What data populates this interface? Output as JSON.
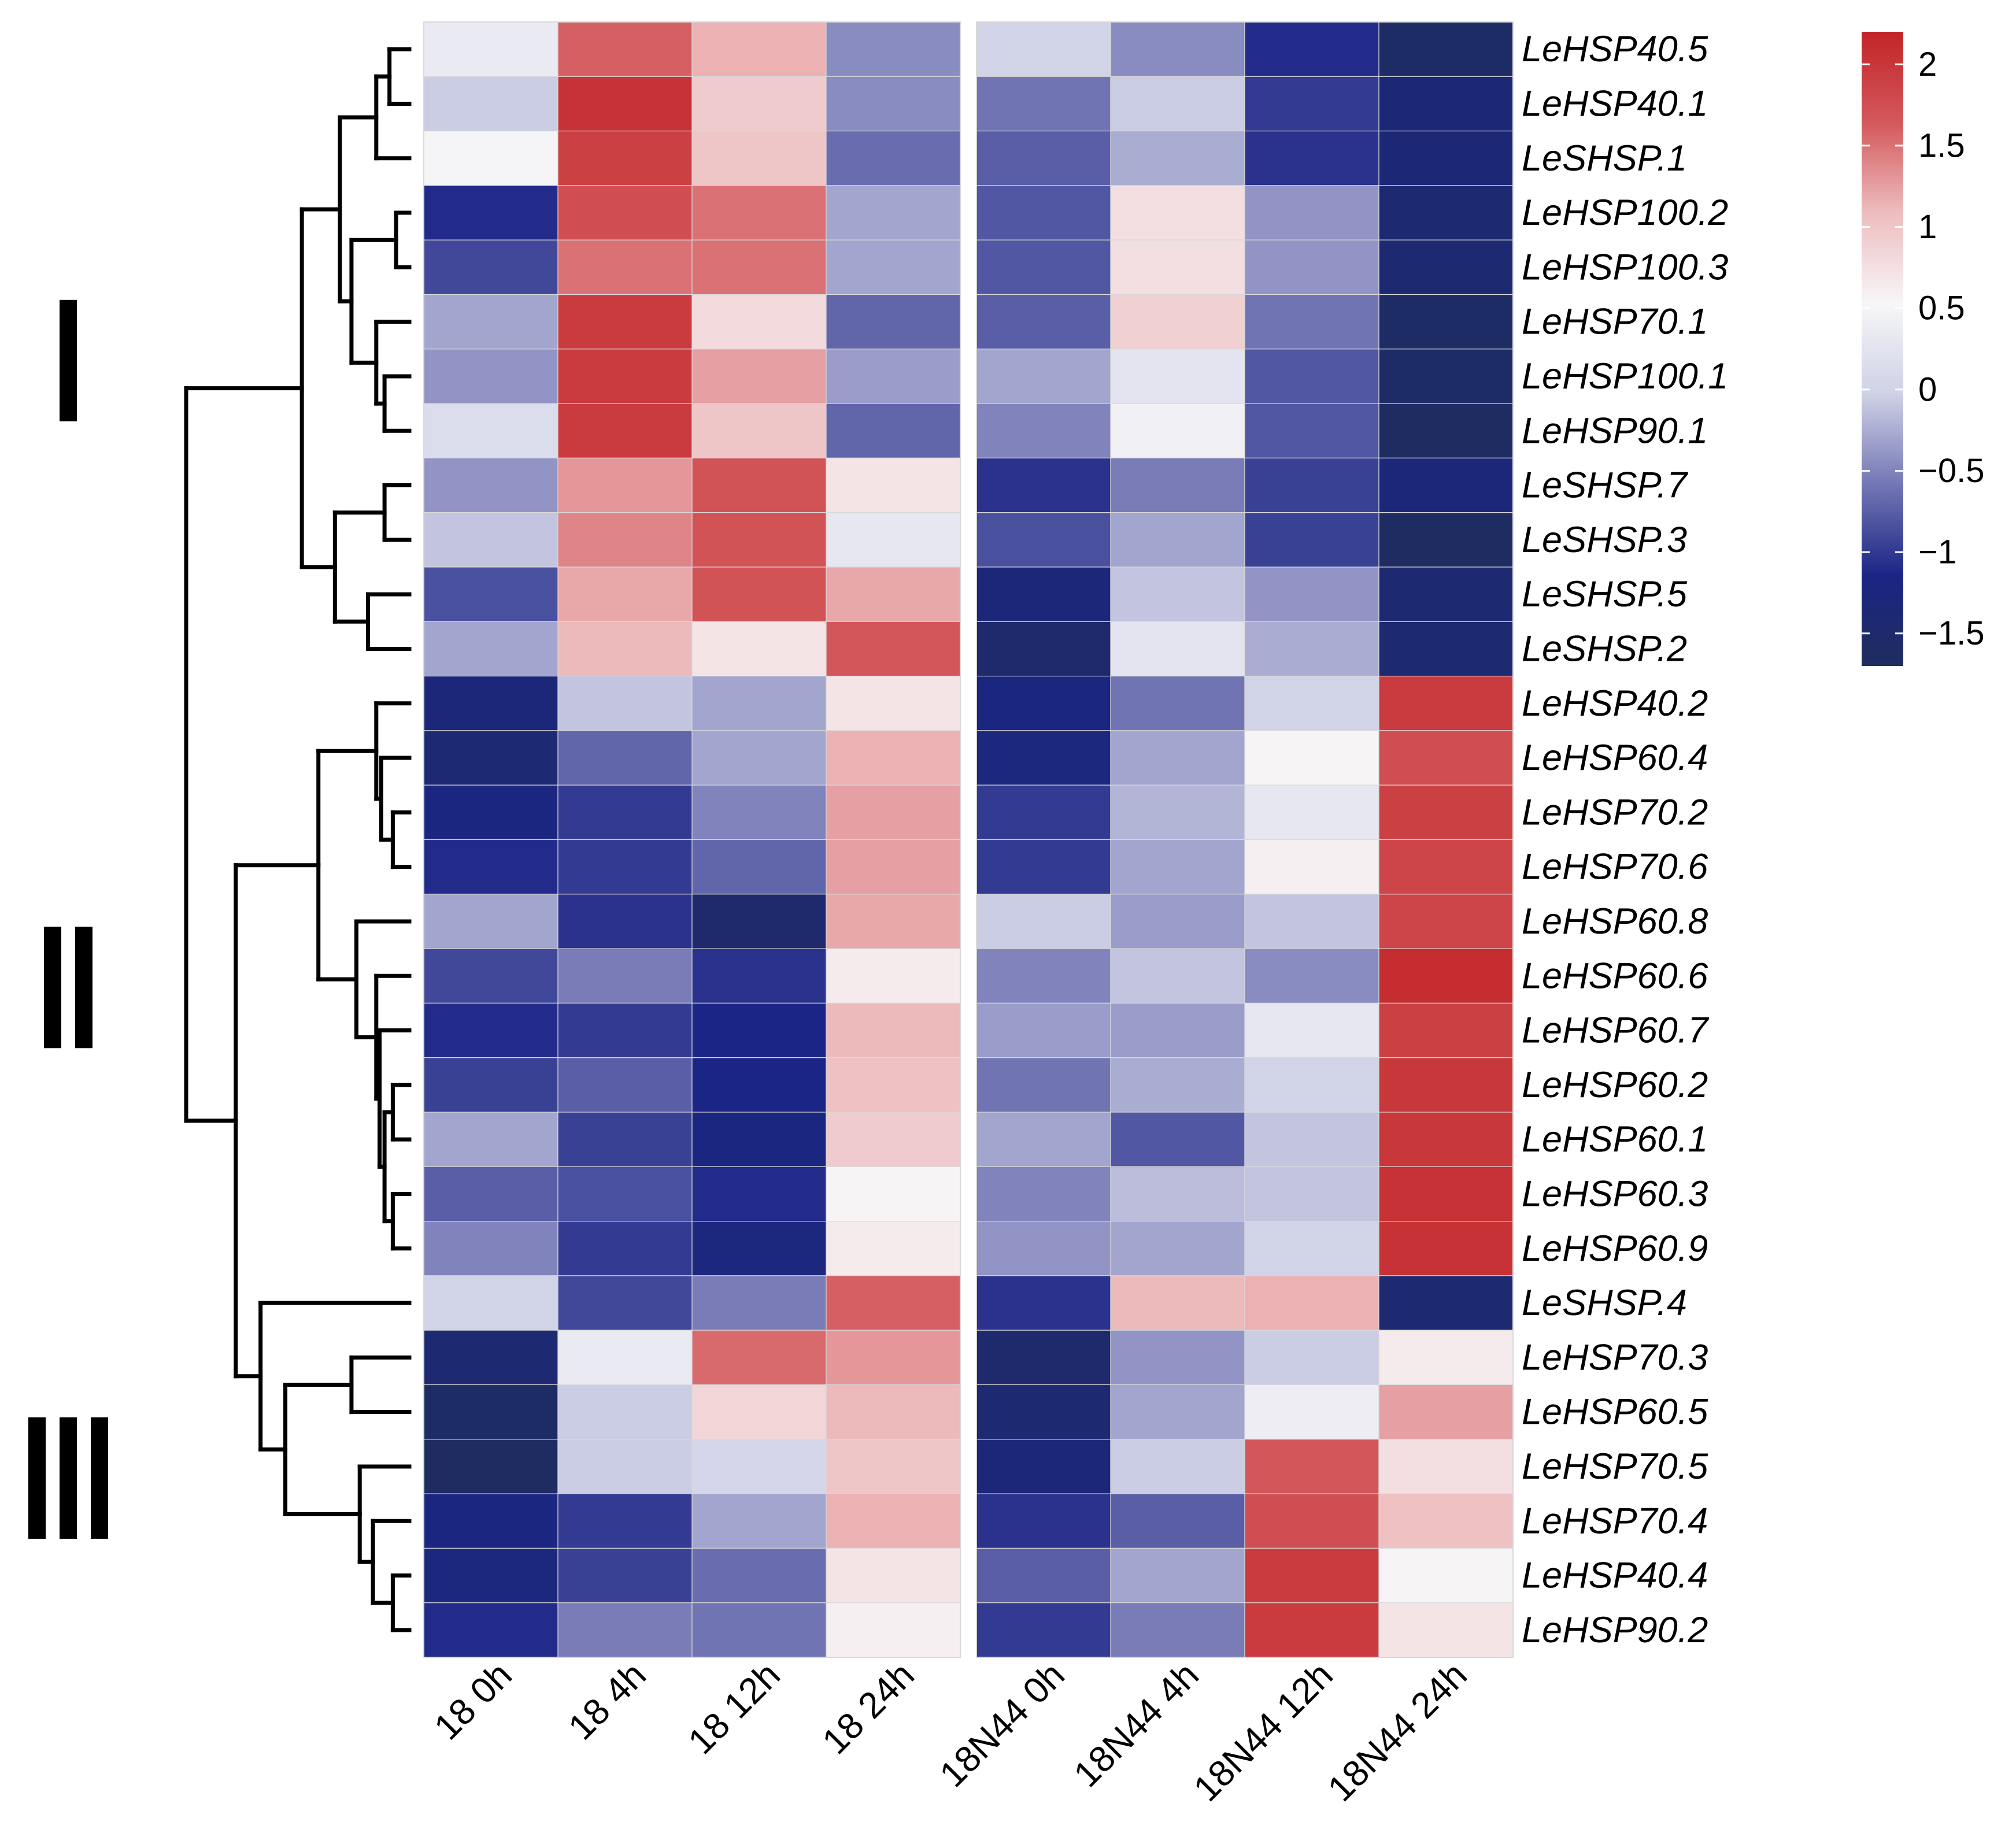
{
  "chart_data": {
    "type": "heatmap",
    "title": "",
    "columns": [
      "18_0h",
      "18_4h",
      "18_12h",
      "18_24h",
      "18N44_0h",
      "18N44_4h",
      "18N44_12h",
      "18N44_24h"
    ],
    "column_labels": [
      "18  0h",
      "18  4h",
      "18  12h",
      "18  24h",
      "18N44  0h",
      "18N44  4h",
      "18N44  12h",
      "18N44  24h"
    ],
    "column_gap_after": 4,
    "rows": [
      "LeHSP40.5",
      "LeHSP40.1",
      "LeSHSP.1",
      "LeHSP100.2",
      "LeHSP100.3",
      "LeHSP70.1",
      "LeHSP100.1",
      "LeHSP90.1",
      "LeSHSP.7",
      "LeSHSP.3",
      "LeSHSP.5",
      "LeSHSP.2",
      "LeHSP40.2",
      "LeHSP60.4",
      "LeHSP70.2",
      "LeHSP70.6",
      "LeHSP60.8",
      "LeHSP60.6",
      "LeHSP60.7",
      "LeHSP60.2",
      "LeHSP60.1",
      "LeHSP60.3",
      "LeHSP60.9",
      "LeSHSP.4",
      "LeHSP70.3",
      "LeHSP60.5",
      "LeHSP70.5",
      "LeHSP70.4",
      "LeHSP40.4",
      "LeHSP90.2"
    ],
    "values": [
      [
        0.35,
        1.6,
        1.15,
        -0.45,
        0.0,
        -0.45,
        -1.1,
        -1.6
      ],
      [
        -0.05,
        2.05,
        0.95,
        -0.45,
        -0.6,
        -0.05,
        -1.0,
        -1.35
      ],
      [
        0.5,
        1.9,
        1.0,
        -0.65,
        -0.75,
        -0.25,
        -1.05,
        -1.35
      ],
      [
        -1.1,
        1.75,
        1.5,
        -0.3,
        -0.8,
        0.75,
        -0.4,
        -1.45
      ],
      [
        -0.9,
        1.5,
        1.5,
        -0.3,
        -0.8,
        0.75,
        -0.4,
        -1.45
      ],
      [
        -0.3,
        1.95,
        0.8,
        -0.7,
        -0.75,
        0.9,
        -0.6,
        -1.6
      ],
      [
        -0.4,
        1.95,
        1.25,
        -0.35,
        -0.3,
        0.25,
        -0.8,
        -1.6
      ],
      [
        0.15,
        1.95,
        1.0,
        -0.7,
        -0.5,
        0.45,
        -0.8,
        -1.65
      ],
      [
        -0.4,
        1.3,
        1.7,
        0.7,
        -1.05,
        -0.55,
        -0.95,
        -1.3
      ],
      [
        -0.1,
        1.4,
        1.7,
        0.3,
        -0.85,
        -0.3,
        -0.95,
        -1.65
      ],
      [
        -0.85,
        1.2,
        1.7,
        1.2,
        -1.3,
        -0.1,
        -0.4,
        -1.45
      ],
      [
        -0.3,
        1.1,
        0.7,
        1.65,
        -1.5,
        0.25,
        -0.25,
        -1.45
      ],
      [
        -1.3,
        -0.1,
        -0.3,
        0.7,
        -1.2,
        -0.6,
        0.0,
        1.95
      ],
      [
        -1.4,
        -0.7,
        -0.3,
        1.15,
        -1.25,
        -0.3,
        0.55,
        1.75
      ],
      [
        -1.2,
        -1.0,
        -0.5,
        1.25,
        -1.0,
        -0.2,
        0.3,
        1.9
      ],
      [
        -1.1,
        -1.0,
        -0.7,
        1.25,
        -1.0,
        -0.3,
        0.6,
        1.85
      ],
      [
        -0.3,
        -1.05,
        -1.5,
        1.2,
        -0.05,
        -0.35,
        -0.1,
        1.85
      ],
      [
        -0.9,
        -0.55,
        -1.05,
        0.65,
        -0.5,
        -0.1,
        -0.45,
        2.1
      ],
      [
        -1.1,
        -1.0,
        -1.15,
        1.1,
        -0.35,
        -0.35,
        0.3,
        1.9
      ],
      [
        -0.95,
        -0.75,
        -1.15,
        1.05,
        -0.6,
        -0.25,
        0.0,
        2.0
      ],
      [
        -0.3,
        -0.95,
        -1.2,
        0.95,
        -0.3,
        -0.8,
        -0.1,
        2.0
      ],
      [
        -0.75,
        -0.85,
        -1.1,
        0.55,
        -0.5,
        -0.15,
        -0.1,
        2.05
      ],
      [
        -0.5,
        -1.0,
        -1.25,
        0.65,
        -0.4,
        -0.3,
        0.0,
        2.05
      ],
      [
        0.0,
        -0.9,
        -0.55,
        1.6,
        -1.05,
        1.1,
        1.15,
        -1.45
      ],
      [
        -1.45,
        0.35,
        1.55,
        1.3,
        -1.5,
        -0.4,
        -0.05,
        0.65
      ],
      [
        -1.6,
        -0.05,
        0.85,
        1.1,
        -1.45,
        -0.3,
        0.4,
        1.25
      ],
      [
        -1.65,
        -0.05,
        0.05,
        1.0,
        -1.3,
        -0.05,
        1.65,
        0.75
      ],
      [
        -1.2,
        -1.0,
        -0.3,
        1.15,
        -1.05,
        -0.75,
        1.75,
        1.05
      ],
      [
        -1.25,
        -0.95,
        -0.65,
        0.7,
        -0.75,
        -0.3,
        1.95,
        0.55
      ],
      [
        -1.1,
        -0.55,
        -0.6,
        0.6,
        -1.0,
        -0.55,
        1.95,
        0.7
      ]
    ],
    "value_range": [
      -1.7,
      2.2
    ],
    "colorbar": {
      "ticks": [
        2,
        1.5,
        1,
        0.5,
        0,
        -0.5,
        -1,
        -1.5
      ],
      "tick_labels": [
        "2",
        "1.5",
        "1",
        "0.5",
        "0",
        "−0.5",
        "−1",
        "−1.5"
      ],
      "colors": [
        "#1f2d5e",
        "#1b2585",
        "#7376b4",
        "#cfd1e6",
        "#f7f6f8",
        "#eebdbf",
        "#d3585b",
        "#c22428"
      ]
    },
    "row_clusters": [
      {
        "label": "I",
        "first_row": 0,
        "last_row": 11
      },
      {
        "label": "II",
        "first_row": 12,
        "last_row": 22
      },
      {
        "label": "III",
        "first_row": 23,
        "last_row": 29
      }
    ],
    "dendrogram": [
      [
        0,
        1,
        0.12
      ],
      [
        30,
        2,
        0.2
      ],
      [
        3,
        4,
        0.08
      ],
      [
        6,
        7,
        0.15
      ],
      [
        5,
        33,
        0.2
      ],
      [
        32,
        34,
        0.35
      ],
      [
        31,
        35,
        0.42
      ],
      [
        8,
        9,
        0.15
      ],
      [
        10,
        11,
        0.25
      ],
      [
        37,
        38,
        0.45
      ],
      [
        36,
        39,
        0.65
      ],
      [
        14,
        15,
        0.1
      ],
      [
        13,
        41,
        0.17
      ],
      [
        12,
        42,
        0.2
      ],
      [
        19,
        20,
        0.1
      ],
      [
        21,
        22,
        0.1
      ],
      [
        44,
        45,
        0.15
      ],
      [
        18,
        46,
        0.18
      ],
      [
        17,
        47,
        0.2
      ],
      [
        16,
        48,
        0.32
      ],
      [
        43,
        49,
        0.55
      ],
      [
        24,
        25,
        0.35
      ],
      [
        28,
        29,
        0.1
      ],
      [
        27,
        52,
        0.22
      ],
      [
        26,
        53,
        0.3
      ],
      [
        51,
        54,
        0.75
      ],
      [
        23,
        55,
        0.9
      ],
      [
        50,
        56,
        1.05
      ],
      [
        40,
        57,
        1.35
      ]
    ]
  }
}
